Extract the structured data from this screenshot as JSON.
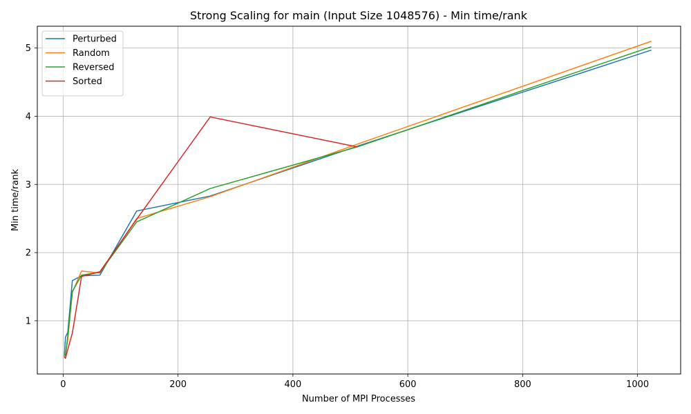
{
  "chart_data": {
    "type": "line",
    "title": "Strong Scaling for main (Input Size 1048576) - Min time/rank",
    "xlabel": "Number of MPI Processes",
    "ylabel": "Min time/rank",
    "xlim": [
      -45,
      1075
    ],
    "ylim": [
      0.22,
      5.32
    ],
    "xticks": [
      0,
      200,
      400,
      600,
      800,
      1000
    ],
    "yticks": [
      1,
      2,
      3,
      4,
      5
    ],
    "grid": true,
    "legend_position": "top-left",
    "series": [
      {
        "name": "Perturbed",
        "color": "#1f77b4",
        "x": [
          2,
          4,
          8,
          16,
          32,
          64,
          128,
          256,
          512,
          1024
        ],
        "y": [
          0.47,
          0.76,
          0.83,
          1.59,
          1.66,
          1.67,
          2.61,
          2.83,
          3.56,
          4.97
        ]
      },
      {
        "name": "Random",
        "color": "#ff7f0e",
        "x": [
          2,
          4,
          8,
          16,
          32,
          64,
          128,
          256,
          512,
          1024
        ],
        "y": [
          0.47,
          0.5,
          0.72,
          1.42,
          1.73,
          1.7,
          2.5,
          2.82,
          3.59,
          5.1
        ]
      },
      {
        "name": "Reversed",
        "color": "#2ca02c",
        "x": [
          2,
          4,
          8,
          16,
          32,
          64,
          128,
          256,
          512,
          1024
        ],
        "y": [
          0.52,
          0.49,
          0.78,
          1.43,
          1.67,
          1.71,
          2.45,
          2.94,
          3.55,
          5.02
        ]
      },
      {
        "name": "Sorted",
        "color": "#d62728",
        "x": [
          2,
          4,
          8,
          16,
          32,
          64,
          128,
          256,
          512
        ],
        "y": [
          0.47,
          0.45,
          0.58,
          0.82,
          1.65,
          1.72,
          2.49,
          3.99,
          3.55
        ]
      }
    ]
  }
}
